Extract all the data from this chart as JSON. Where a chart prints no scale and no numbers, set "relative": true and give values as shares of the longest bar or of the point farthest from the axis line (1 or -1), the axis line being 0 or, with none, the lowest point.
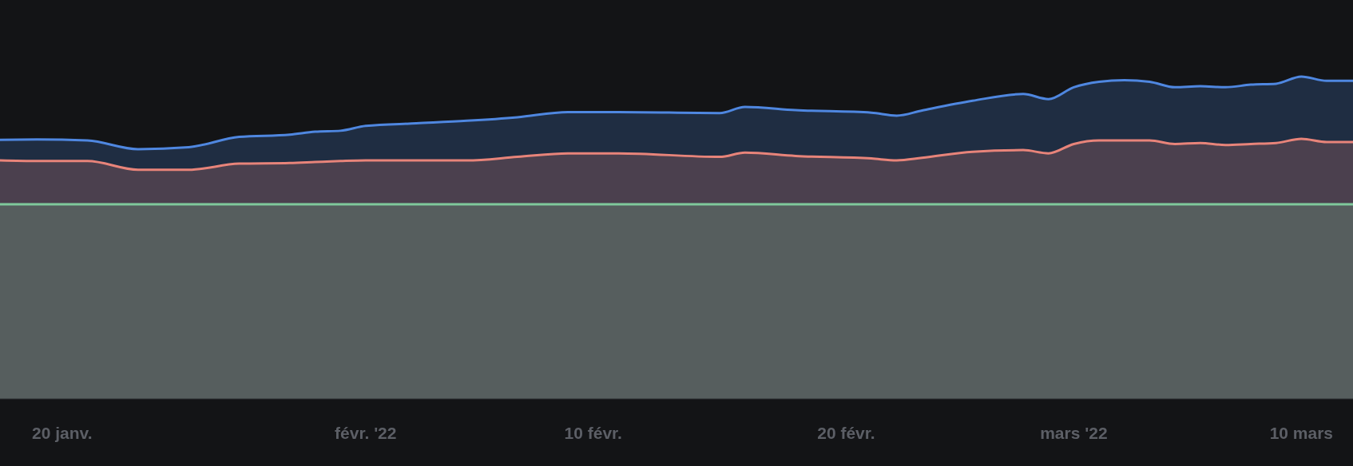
{
  "chart_data": {
    "type": "area",
    "relative": true,
    "x": [
      "2022-01-17T13:00",
      "2022-01-19",
      "2022-01-21",
      "2022-01-23",
      "2022-01-25",
      "2022-01-27",
      "2022-01-29",
      "2022-01-30",
      "2022-01-31",
      "2022-02-01",
      "2022-02-03",
      "2022-02-05",
      "2022-02-07",
      "2022-02-09",
      "2022-02-11",
      "2022-02-15",
      "2022-02-16",
      "2022-02-18",
      "2022-02-21",
      "2022-02-22",
      "2022-02-23",
      "2022-02-25",
      "2022-02-27",
      "2022-02-28",
      "2022-03-01",
      "2022-03-02",
      "2022-03-03",
      "2022-03-04",
      "2022-03-05",
      "2022-03-06",
      "2022-03-07",
      "2022-03-08",
      "2022-03-09",
      "2022-03-10",
      "2022-03-11",
      "2022-03-12T01:00"
    ],
    "xlim": [
      "2022-01-17T13:00",
      "2022-03-12T01:00"
    ],
    "xticks": [
      {
        "value": "2022-01-20",
        "label": "20 janv."
      },
      {
        "value": "2022-02-01",
        "label": "févr. '22"
      },
      {
        "value": "2022-02-10",
        "label": "10 févr."
      },
      {
        "value": "2022-02-20",
        "label": "20 févr."
      },
      {
        "value": "2022-03-01",
        "label": "mars '22"
      },
      {
        "value": "2022-03-10",
        "label": "10 mars"
      }
    ],
    "series": [
      {
        "color": "#4f87e0",
        "values": [
          0.804,
          0.805,
          0.802,
          0.775,
          0.781,
          0.813,
          0.82,
          0.829,
          0.832,
          0.847,
          0.855,
          0.863,
          0.874,
          0.89,
          0.89,
          0.887,
          0.906,
          0.896,
          0.888,
          0.879,
          0.895,
          0.925,
          0.946,
          0.93,
          0.967,
          0.984,
          0.989,
          0.984,
          0.967,
          0.97,
          0.967,
          0.975,
          0.978,
          1.0,
          0.987,
          0.987
        ]
      },
      {
        "color": "#e8847a",
        "values": [
          0.74,
          0.738,
          0.738,
          0.711,
          0.711,
          0.73,
          0.732,
          0.735,
          0.738,
          0.74,
          0.74,
          0.74,
          0.751,
          0.762,
          0.762,
          0.751,
          0.764,
          0.754,
          0.746,
          0.74,
          0.748,
          0.767,
          0.772,
          0.762,
          0.791,
          0.802,
          0.802,
          0.802,
          0.791,
          0.794,
          0.788,
          0.791,
          0.794,
          0.807,
          0.797,
          0.797
        ]
      },
      {
        "color": "#7fc99b",
        "values": [
          0.604,
          0.604,
          0.604,
          0.604,
          0.604,
          0.604,
          0.604,
          0.604,
          0.604,
          0.604,
          0.604,
          0.604,
          0.604,
          0.604,
          0.604,
          0.604,
          0.604,
          0.604,
          0.604,
          0.604,
          0.604,
          0.604,
          0.604,
          0.604,
          0.604,
          0.604,
          0.604,
          0.604,
          0.604,
          0.604,
          0.604,
          0.604,
          0.604,
          0.604,
          0.604,
          0.604
        ]
      }
    ]
  }
}
